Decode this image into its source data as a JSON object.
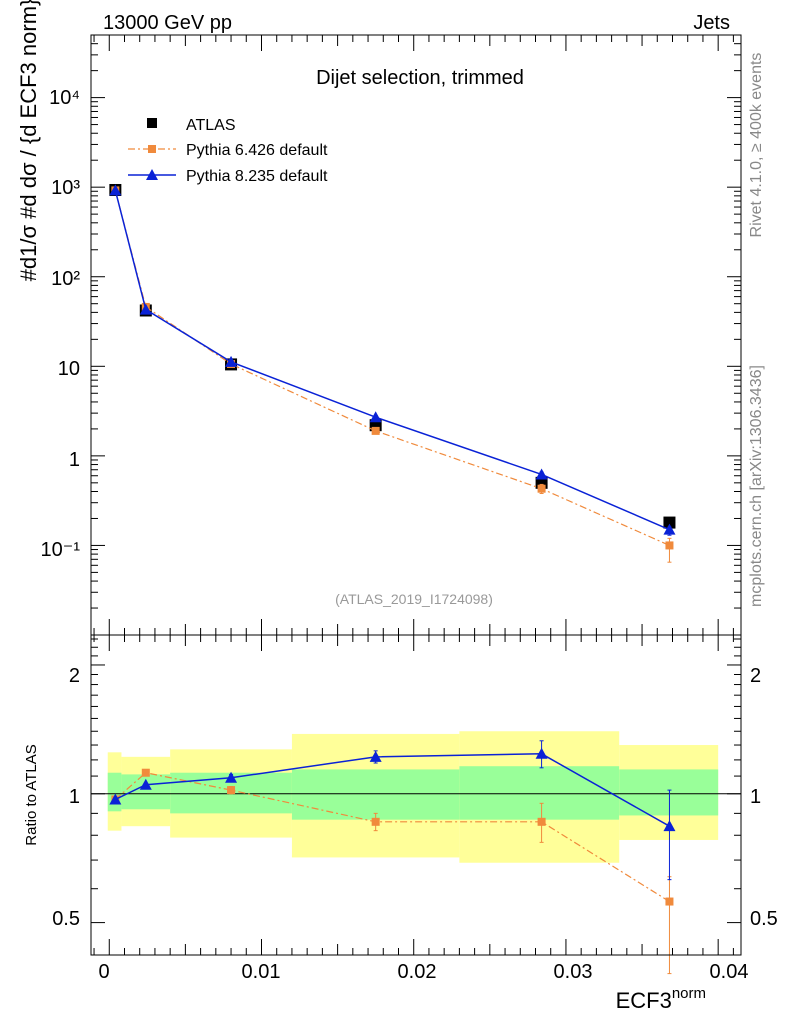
{
  "header": {
    "left": "13000 GeV pp",
    "right": "Jets"
  },
  "side": {
    "rivet": "Rivet 4.1.0, ≥ 400k events",
    "mcplots": "mcplots.cern.ch [arXiv:1306.3436]"
  },
  "chart_data": [
    {
      "type": "scatter",
      "title": "Dijet selection, trimmed",
      "analysis": "(ATLAS_2019_I1724098)",
      "xlabel_main": "ECF3",
      "xlabel_sup": "norm",
      "ylabel": "#d1/σ #d dσ / {d ECF3 norm}",
      "yscale": "log",
      "ylim": [
        0.01,
        50000
      ],
      "ytick_labels": [
        "10⁻¹",
        "1",
        "10",
        "10²",
        "10³",
        "10⁴"
      ],
      "xlim": [
        -0.0012,
        0.0415
      ],
      "legend": [
        "ATLAS",
        "Pythia 6.426 default",
        "Pythia 8.235 default"
      ],
      "x": [
        0.0004,
        0.0024,
        0.008,
        0.0175,
        0.0284,
        0.0368
      ],
      "series": [
        {
          "name": "ATLAS",
          "color": "#000000",
          "values": [
            930,
            42,
            10.5,
            2.2,
            0.5,
            0.18
          ]
        },
        {
          "name": "Pythia 6.426 default",
          "color": "#f08a3c",
          "values": [
            920,
            46,
            10.6,
            1.9,
            0.43,
            0.1
          ],
          "err_low": [
            0,
            0,
            0,
            0.1,
            0.05,
            0.035
          ],
          "err_high": [
            0,
            0,
            0,
            0.1,
            0.05,
            0.02
          ]
        },
        {
          "name": "Pythia 8.235 default",
          "color": "#0a22d6",
          "values": [
            920,
            43,
            11.2,
            2.7,
            0.62,
            0.15
          ],
          "err_low": [
            0,
            0,
            0,
            0.1,
            0.04,
            0.02
          ],
          "err_high": [
            0,
            0,
            0,
            0.1,
            0.04,
            0.01
          ]
        }
      ]
    },
    {
      "type": "scatter",
      "ylabel": "Ratio to ATLAS",
      "yscale": "log",
      "ylim": [
        0.42,
        2.35
      ],
      "ytick_labels": [
        "0.5",
        "1",
        "2"
      ],
      "xlim": [
        -0.0012,
        0.0415
      ],
      "xtick_labels": [
        "0",
        "0.01",
        "0.02",
        "0.03",
        "0.04"
      ],
      "bins": [
        [
          -0.0001,
          0.0008
        ],
        [
          0.0008,
          0.004
        ],
        [
          0.004,
          0.012
        ],
        [
          0.012,
          0.023
        ],
        [
          0.023,
          0.0335
        ],
        [
          0.0335,
          0.04
        ]
      ],
      "band_stat": [
        [
          0.91,
          1.12
        ],
        [
          0.92,
          1.11
        ],
        [
          0.9,
          1.12
        ],
        [
          0.87,
          1.14
        ],
        [
          0.87,
          1.16
        ],
        [
          0.89,
          1.14
        ]
      ],
      "band_total": [
        [
          0.82,
          1.25
        ],
        [
          0.84,
          1.22
        ],
        [
          0.79,
          1.27
        ],
        [
          0.71,
          1.38
        ],
        [
          0.69,
          1.4
        ],
        [
          0.78,
          1.3
        ]
      ],
      "x": [
        0.0004,
        0.0024,
        0.008,
        0.0175,
        0.0284,
        0.0368
      ],
      "series": [
        {
          "name": "Pythia 6.426 default",
          "color": "#f08a3c",
          "values": [
            0.97,
            1.12,
            1.02,
            0.86,
            0.86,
            0.56
          ],
          "err_low": [
            0,
            0,
            0.02,
            0.04,
            0.09,
            0.18
          ],
          "err_high": [
            0,
            0,
            0.02,
            0.04,
            0.09,
            0.08
          ]
        },
        {
          "name": "Pythia 8.235 default",
          "color": "#0a22d6",
          "values": [
            0.97,
            1.05,
            1.09,
            1.22,
            1.24,
            0.84
          ],
          "err_low": [
            0,
            0,
            0.02,
            0.04,
            0.09,
            0.21
          ],
          "err_high": [
            0,
            0,
            0.02,
            0.04,
            0.09,
            0.18
          ]
        }
      ]
    }
  ]
}
